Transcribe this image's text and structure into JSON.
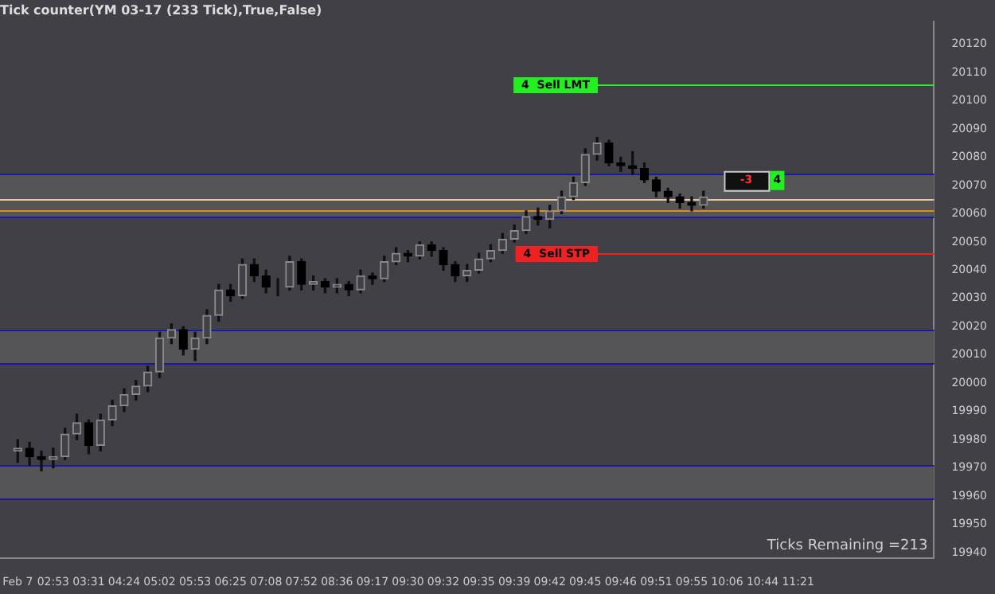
{
  "chart_data": {
    "type": "candlestick",
    "title": "Tick counter(YM 03-17 (233 Tick),True,False)",
    "categories": [
      null,
      "Feb 7",
      null,
      null,
      "02:53",
      null,
      null,
      "03:31",
      null,
      null,
      "04:24",
      null,
      null,
      "05:02",
      null,
      null,
      "05:53",
      null,
      null,
      "06:25",
      null,
      null,
      "07:08",
      null,
      null,
      "07:52",
      null,
      null,
      "08:36",
      null,
      null,
      "09:17",
      null,
      null,
      "09:30",
      null,
      null,
      "09:32",
      null,
      null,
      "09:35",
      null,
      null,
      "09:39",
      null,
      null,
      "09:42",
      null,
      null,
      "09:45",
      null,
      null,
      "09:46",
      null,
      null,
      "09:51",
      null,
      null,
      "09:55",
      null,
      null,
      "10:06",
      null,
      null,
      "10:44",
      null,
      null,
      "11:21",
      null,
      null,
      null,
      null,
      null,
      null,
      null,
      null,
      null,
      null,
      null
    ],
    "ohlc": [
      null,
      [
        19976,
        19980,
        19972,
        19977
      ],
      [
        19977,
        19979,
        19971,
        19974
      ],
      [
        19974,
        19976,
        19969,
        19973
      ],
      [
        19973,
        19977,
        19970,
        19974
      ],
      [
        19974,
        19984,
        19973,
        19982
      ],
      [
        19982,
        19989,
        19980,
        19986
      ],
      [
        19986,
        19987,
        19975,
        19978
      ],
      [
        19978,
        19989,
        19976,
        19987
      ],
      [
        19987,
        19994,
        19985,
        19992
      ],
      [
        19992,
        19998,
        19990,
        19996
      ],
      [
        19996,
        20001,
        19994,
        19999
      ],
      [
        19999,
        20006,
        19997,
        20004
      ],
      [
        20004,
        20018,
        20002,
        20016
      ],
      [
        20016,
        20021,
        20014,
        20019
      ],
      [
        20019,
        20020,
        20010,
        20012
      ],
      [
        20012,
        20018,
        20008,
        20016
      ],
      [
        20016,
        20026,
        20014,
        20024
      ],
      [
        20024,
        20035,
        20022,
        20033
      ],
      [
        20033,
        20035,
        20029,
        20031
      ],
      [
        20031,
        20044,
        20030,
        20042
      ],
      [
        20042,
        20044,
        20036,
        20038
      ],
      [
        20038,
        20040,
        20032,
        20034
      ],
      [
        20034,
        20037,
        20031,
        20034
      ],
      [
        20034,
        20045,
        20033,
        20043
      ],
      [
        20043,
        20044,
        20033,
        20035
      ],
      [
        20035,
        20038,
        20033,
        20036
      ],
      [
        20036,
        20037,
        20032,
        20034
      ],
      [
        20034,
        20037,
        20032,
        20035
      ],
      [
        20035,
        20036,
        20031,
        20033
      ],
      [
        20033,
        20040,
        20032,
        20038
      ],
      [
        20038,
        20039,
        20035,
        20037
      ],
      [
        20037,
        20045,
        20036,
        20043
      ],
      [
        20043,
        20048,
        20042,
        20046
      ],
      [
        20046,
        20047,
        20043,
        20045
      ],
      [
        20045,
        20050,
        20044,
        20049
      ],
      [
        20049,
        20050,
        20045,
        20047
      ],
      [
        20047,
        20048,
        20040,
        20042
      ],
      [
        20042,
        20043,
        20036,
        20038
      ],
      [
        20038,
        20042,
        20036,
        20040
      ],
      [
        20040,
        20046,
        20039,
        20044
      ],
      [
        20044,
        20049,
        20043,
        20047
      ],
      [
        20047,
        20053,
        20046,
        20051
      ],
      [
        20051,
        20056,
        20050,
        20054
      ],
      [
        20054,
        20061,
        20053,
        20059
      ],
      [
        20059,
        20062,
        20056,
        20058
      ],
      [
        20058,
        20063,
        20055,
        20061
      ],
      [
        20061,
        20068,
        20060,
        20066
      ],
      [
        20066,
        20073,
        20065,
        20071
      ],
      [
        20071,
        20083,
        20070,
        20081
      ],
      [
        20081,
        20087,
        20079,
        20085
      ],
      [
        20085,
        20086,
        20077,
        20078
      ],
      [
        20078,
        20080,
        20075,
        20077
      ],
      [
        20077,
        20082,
        20074,
        20076
      ],
      [
        20076,
        20078,
        20071,
        20072
      ],
      [
        20072,
        20073,
        20066,
        20068
      ],
      [
        20068,
        20069,
        20064,
        20066
      ],
      [
        20066,
        20067,
        20062,
        20064
      ],
      [
        20064,
        20066,
        20061,
        20063
      ],
      [
        20063,
        20068,
        20062,
        20066
      ],
      null,
      null,
      null,
      null,
      null,
      null,
      null,
      null,
      null,
      null,
      null,
      null,
      null,
      null,
      null,
      null,
      null,
      null,
      null
    ],
    "ylim": [
      19938,
      20128
    ],
    "yticks": [
      19940,
      19950,
      19960,
      19970,
      19980,
      19990,
      20000,
      20010,
      20020,
      20030,
      20040,
      20050,
      20060,
      20070,
      20080,
      20090,
      20100,
      20110,
      20120
    ],
    "bands": [
      {
        "axis": "y",
        "from": 20059,
        "to": 20074,
        "color": "#555558"
      },
      {
        "axis": "y",
        "from": 20007,
        "to": 20019,
        "color": "#555558"
      },
      {
        "axis": "y",
        "from": 19959,
        "to": 19971,
        "color": "#555558"
      }
    ],
    "ref_lines": [
      {
        "axis": "y",
        "value": 20106,
        "label": "4  Sell LMT",
        "color": "#22ee22"
      },
      {
        "axis": "y",
        "value": 20046,
        "label": "4  Sell STP",
        "color": "#ee2222"
      },
      {
        "axis": "y",
        "value": 20065,
        "color": "#e8c8a0"
      },
      {
        "axis": "y",
        "value": 20061,
        "color": "#d89020"
      },
      {
        "axis": "y",
        "value": 20074,
        "color": "#1a1aa0"
      },
      {
        "axis": "y",
        "value": 20059,
        "color": "#1a1aa0"
      },
      {
        "axis": "y",
        "value": 20019,
        "color": "#1a1aa0"
      },
      {
        "axis": "y",
        "value": 20007,
        "color": "#1a1aa0"
      },
      {
        "axis": "y",
        "value": 19971,
        "color": "#1a1aa0"
      },
      {
        "axis": "y",
        "value": 19959,
        "color": "#1a1aa0"
      }
    ],
    "annotations": [
      "-3",
      "4",
      "Ticks Remaining =213"
    ],
    "grid": false,
    "legend": false
  }
}
